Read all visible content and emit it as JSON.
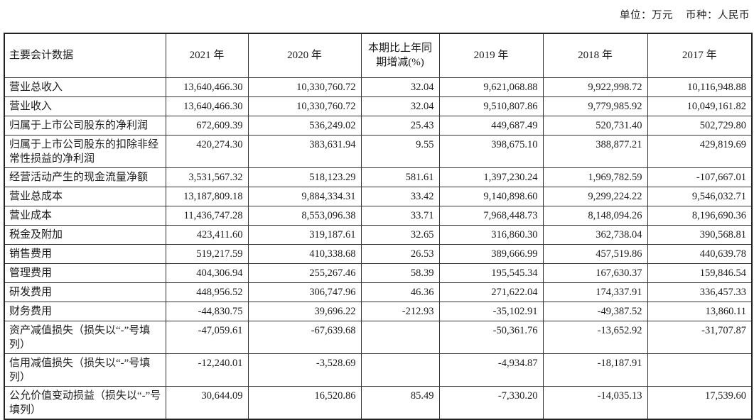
{
  "page": {
    "unit_label": "单位：万元",
    "currency_label": "币种：人民币"
  },
  "table": {
    "columns": [
      "主要会计数据",
      "2021 年",
      "2020 年",
      "本期比上年同期增减(%)",
      "2019 年",
      "2018 年",
      "2017 年"
    ],
    "rows": [
      {
        "label": "营业总收入",
        "values": [
          "13,640,466.30",
          "10,330,760.72",
          "32.04",
          "9,621,068.88",
          "9,922,998.72",
          "10,116,948.88"
        ]
      },
      {
        "label": "营业收入",
        "values": [
          "13,640,466.30",
          "10,330,760.72",
          "32.04",
          "9,510,807.86",
          "9,779,985.92",
          "10,049,161.82"
        ]
      },
      {
        "label": "归属于上市公司股东的净利润",
        "values": [
          "672,609.39",
          "536,249.02",
          "25.43",
          "449,687.49",
          "520,731.40",
          "502,729.80"
        ]
      },
      {
        "label": "归属于上市公司股东的扣除非经常性损益的净利润",
        "values": [
          "420,274.30",
          "383,631.94",
          "9.55",
          "398,675.10",
          "388,877.21",
          "429,819.69"
        ]
      },
      {
        "label": "经营活动产生的现金流量净额",
        "values": [
          "3,531,567.32",
          "518,123.29",
          "581.61",
          "1,397,230.24",
          "1,969,782.59",
          "-107,667.01"
        ]
      },
      {
        "label": "营业总成本",
        "values": [
          "13,187,809.18",
          "9,884,334.31",
          "33.42",
          "9,140,898.60",
          "9,299,224.22",
          "9,546,032.71"
        ]
      },
      {
        "label": "营业成本",
        "values": [
          "11,436,747.28",
          "8,553,096.38",
          "33.71",
          "7,968,448.73",
          "8,148,094.26",
          "8,196,690.36"
        ]
      },
      {
        "label": "税金及附加",
        "values": [
          "423,411.60",
          "319,187.61",
          "32.65",
          "316,860.30",
          "362,738.04",
          "390,568.81"
        ]
      },
      {
        "label": "销售费用",
        "values": [
          "519,217.59",
          "410,338.68",
          "26.53",
          "389,666.99",
          "457,519.86",
          "440,639.78"
        ]
      },
      {
        "label": "管理费用",
        "values": [
          "404,306.94",
          "255,267.46",
          "58.39",
          "195,545.34",
          "167,630.37",
          "159,846.54"
        ]
      },
      {
        "label": "研发费用",
        "values": [
          "448,956.52",
          "306,747.96",
          "46.36",
          "271,622.04",
          "174,337.91",
          "336,457.33"
        ]
      },
      {
        "label": "财务费用",
        "values": [
          "-44,830.75",
          "39,696.22",
          "-212.93",
          "-35,102.91",
          "-49,387.52",
          "13,860.11"
        ]
      },
      {
        "label": "资产减值损失（损失以“-”号填列）",
        "values": [
          "-47,059.61",
          "-67,639.68",
          "",
          "-50,361.76",
          "-13,652.92",
          "-31,707.87"
        ]
      },
      {
        "label": "信用减值损失（损失以“-”号填列）",
        "values": [
          "-12,240.01",
          "-3,528.69",
          "",
          "-4,934.87",
          "-18,187.91",
          ""
        ]
      },
      {
        "label": "公允价值变动损益（损失以“-”号填列）",
        "values": [
          "30,644.09",
          "16,520.86",
          "85.49",
          "-7,330.20",
          "-14,035.13",
          "17,539.60"
        ]
      }
    ]
  }
}
